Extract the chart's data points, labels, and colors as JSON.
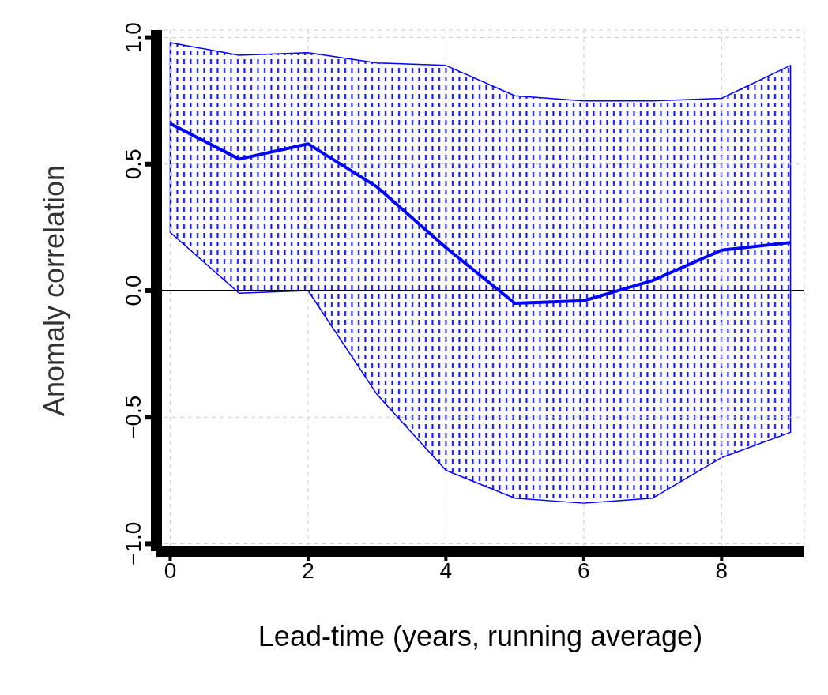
{
  "chart_data": {
    "type": "line",
    "xlabel": "Lead-time (years, running average)",
    "ylabel": "Anomaly correlation",
    "x": [
      0,
      1,
      2,
      3,
      4,
      5,
      6,
      7,
      8,
      9
    ],
    "series": [
      {
        "color": "#0000ff",
        "values": [
          0.66,
          0.52,
          0.58,
          0.41,
          0.17,
          -0.05,
          -0.04,
          0.04,
          0.16,
          0.19
        ],
        "lower": [
          0.23,
          -0.01,
          0.0,
          -0.41,
          -0.71,
          -0.82,
          -0.84,
          -0.82,
          -0.66,
          -0.56
        ],
        "upper": [
          0.98,
          0.93,
          0.94,
          0.9,
          0.89,
          0.77,
          0.75,
          0.75,
          0.76,
          0.89
        ]
      }
    ],
    "xlim": [
      -0.2,
      9.2
    ],
    "xticks": [
      0,
      2,
      4,
      6,
      8
    ],
    "ylim": [
      -1.03,
      1.03
    ],
    "yticks": [
      {
        "value": -1,
        "label": "−1.0"
      },
      {
        "value": -0.5,
        "label": "−0.5"
      },
      {
        "value": 0,
        "label": "0.0"
      },
      {
        "value": 0.5,
        "label": "0.5"
      },
      {
        "value": 1,
        "label": "1.0"
      }
    ],
    "grid": true,
    "ref_lines": [
      {
        "axis": "y",
        "value": 0,
        "color": "#000000"
      }
    ]
  }
}
